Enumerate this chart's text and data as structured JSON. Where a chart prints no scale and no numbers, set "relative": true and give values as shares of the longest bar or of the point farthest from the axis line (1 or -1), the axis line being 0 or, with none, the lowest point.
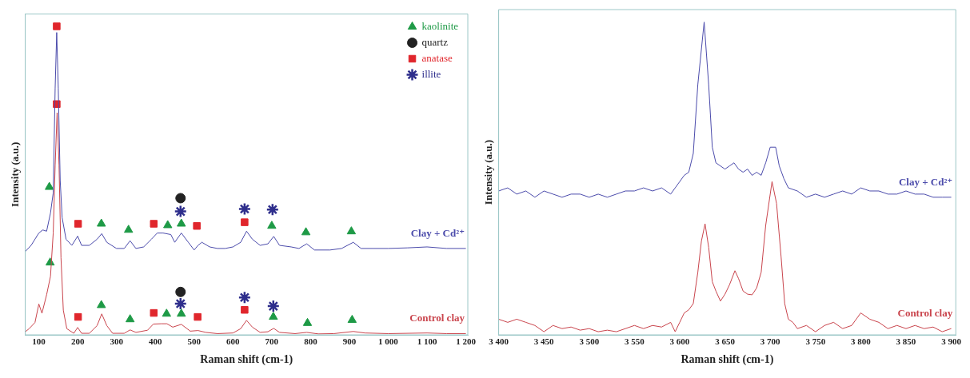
{
  "chart_data": [
    {
      "type": "line",
      "relative": true,
      "xlabel": "Raman shift (cm-1)",
      "ylabel": "Intensity (a.u.)",
      "xlim": [
        65,
        1205
      ],
      "xticks": [
        100,
        200,
        300,
        400,
        500,
        600,
        700,
        800,
        900,
        {
          "value": 1000,
          "label": "1 000"
        },
        {
          "value": 1100,
          "label": "1 100"
        },
        {
          "value": 1200,
          "label": "1 200"
        }
      ],
      "legend": "top right",
      "series": [
        {
          "name": "Clay + Cd²⁺",
          "color": "#4b4bab",
          "x": [
            65,
            80,
            100,
            110,
            120,
            130,
            137,
            142,
            146,
            150,
            155,
            160,
            170,
            185,
            200,
            210,
            230,
            250,
            262,
            275,
            300,
            320,
            335,
            350,
            370,
            390,
            405,
            420,
            440,
            450,
            467,
            485,
            500,
            510,
            520,
            540,
            560,
            580,
            600,
            620,
            635,
            650,
            670,
            690,
            705,
            720,
            750,
            770,
            790,
            810,
            850,
            880,
            910,
            930,
            960,
            1000,
            1050,
            1100,
            1150,
            1200
          ],
          "values": [
            0.27,
            0.29,
            0.33,
            0.34,
            0.336,
            0.395,
            0.46,
            0.8,
            0.98,
            0.8,
            0.5,
            0.38,
            0.31,
            0.29,
            0.32,
            0.29,
            0.29,
            0.31,
            0.328,
            0.3,
            0.28,
            0.28,
            0.305,
            0.28,
            0.285,
            0.31,
            0.33,
            0.33,
            0.325,
            0.3,
            0.33,
            0.3,
            0.275,
            0.29,
            0.3,
            0.285,
            0.28,
            0.28,
            0.285,
            0.3,
            0.336,
            0.31,
            0.29,
            0.295,
            0.319,
            0.29,
            0.285,
            0.28,
            0.295,
            0.275,
            0.275,
            0.28,
            0.3,
            0.28,
            0.28,
            0.28,
            0.282,
            0.285,
            0.28,
            0.28
          ]
        },
        {
          "name": "Control clay",
          "color": "#c9444c",
          "x": [
            65,
            75,
            90,
            100,
            108,
            120,
            130,
            137,
            142,
            147,
            152,
            157,
            163,
            172,
            190,
            200,
            210,
            230,
            250,
            262,
            275,
            290,
            320,
            335,
            350,
            380,
            395,
            415,
            430,
            445,
            467,
            490,
            510,
            530,
            560,
            600,
            620,
            635,
            650,
            670,
            690,
            705,
            720,
            760,
            790,
            820,
            860,
            910,
            940,
            1000,
            1100,
            1150,
            1200
          ],
          "values": [
            0.01,
            0.02,
            0.04,
            0.1,
            0.07,
            0.13,
            0.19,
            0.33,
            0.55,
            0.72,
            0.55,
            0.25,
            0.08,
            0.02,
            0.005,
            0.024,
            0.005,
            0.005,
            0.03,
            0.068,
            0.03,
            0.005,
            0.005,
            0.016,
            0.008,
            0.015,
            0.035,
            0.036,
            0.036,
            0.025,
            0.034,
            0.012,
            0.014,
            0.008,
            0.004,
            0.006,
            0.02,
            0.047,
            0.025,
            0.008,
            0.01,
            0.021,
            0.008,
            0.004,
            0.008,
            0.003,
            0.004,
            0.011,
            0.006,
            0.004,
            0.006,
            0.004,
            0.004
          ]
        },
        {
          "name": "kaolinite",
          "type": "scatter",
          "marker": "triangle",
          "color": "#1e9a46",
          "x": [
            127,
            261,
            331,
            432,
            467,
            700,
            788,
            905,
            129,
            261,
            335,
            429,
            467,
            704,
            792,
            907
          ],
          "values": [
            0.479,
            0.36,
            0.34,
            0.355,
            0.36,
            0.353,
            0.332,
            0.335,
            0.234,
            0.096,
            0.05,
            0.068,
            0.068,
            0.058,
            0.038,
            0.048
          ]
        },
        {
          "name": "quartz",
          "type": "scatter",
          "marker": "circle",
          "color": "#222222",
          "x": [
            465,
            465
          ],
          "values": [
            0.443,
            0.139
          ]
        },
        {
          "name": "anatase",
          "type": "scatter",
          "marker": "square",
          "color": "#e0262c",
          "x": [
            146,
            201,
            396,
            507,
            630,
            146,
            201,
            396,
            509,
            630
          ],
          "values": [
            1.0,
            0.36,
            0.36,
            0.353,
            0.365,
            0.748,
            0.058,
            0.071,
            0.058,
            0.081
          ]
        },
        {
          "name": "illite",
          "type": "scatter",
          "marker": "cross",
          "color": "#2e2e8c",
          "x": [
            465,
            630,
            702,
            465,
            630,
            704
          ],
          "values": [
            0.4,
            0.408,
            0.406,
            0.101,
            0.121,
            0.093
          ]
        }
      ]
    },
    {
      "type": "line",
      "relative": true,
      "xlabel": "Raman shift (cm-1)",
      "ylabel": "Intensity (a.u.)",
      "xlim": [
        3400,
        3905
      ],
      "xticks": [
        {
          "value": 3400,
          "label": "3 400"
        },
        {
          "value": 3450,
          "label": "3 450"
        },
        {
          "value": 3500,
          "label": "3 500"
        },
        {
          "value": 3550,
          "label": "3 550"
        },
        {
          "value": 3600,
          "label": "3 600"
        },
        {
          "value": 3650,
          "label": "3 650"
        },
        {
          "value": 3700,
          "label": "3 700"
        },
        {
          "value": 3750,
          "label": "3 750"
        },
        {
          "value": 3800,
          "label": "3 800"
        },
        {
          "value": 3850,
          "label": "3 850"
        },
        {
          "value": 3900,
          "label": "3 900"
        }
      ],
      "series": [
        {
          "name": "Clay + Cd²⁺",
          "color": "#4b4bab",
          "x": [
            3400,
            3410,
            3420,
            3430,
            3440,
            3450,
            3460,
            3470,
            3480,
            3490,
            3500,
            3510,
            3520,
            3530,
            3540,
            3550,
            3560,
            3570,
            3580,
            3590,
            3595,
            3600,
            3605,
            3610,
            3615,
            3620,
            3627,
            3632,
            3636,
            3640,
            3645,
            3650,
            3655,
            3660,
            3665,
            3670,
            3675,
            3680,
            3685,
            3690,
            3695,
            3700,
            3706,
            3710,
            3715,
            3720,
            3730,
            3740,
            3750,
            3760,
            3770,
            3780,
            3790,
            3800,
            3810,
            3820,
            3830,
            3840,
            3850,
            3860,
            3870,
            3880,
            3890,
            3900
          ],
          "values": [
            0.46,
            0.47,
            0.45,
            0.46,
            0.44,
            0.46,
            0.45,
            0.44,
            0.45,
            0.45,
            0.44,
            0.45,
            0.44,
            0.45,
            0.46,
            0.46,
            0.47,
            0.46,
            0.47,
            0.45,
            0.47,
            0.49,
            0.51,
            0.52,
            0.58,
            0.8,
            1.0,
            0.8,
            0.6,
            0.55,
            0.54,
            0.53,
            0.54,
            0.55,
            0.53,
            0.52,
            0.53,
            0.51,
            0.52,
            0.51,
            0.55,
            0.6,
            0.6,
            0.54,
            0.5,
            0.47,
            0.46,
            0.44,
            0.45,
            0.44,
            0.45,
            0.46,
            0.45,
            0.47,
            0.46,
            0.46,
            0.45,
            0.45,
            0.46,
            0.45,
            0.45,
            0.44,
            0.44,
            0.44
          ]
        },
        {
          "name": "Control clay",
          "color": "#c9444c",
          "x": [
            3400,
            3410,
            3420,
            3430,
            3440,
            3450,
            3460,
            3470,
            3480,
            3490,
            3500,
            3510,
            3520,
            3530,
            3540,
            3550,
            3560,
            3570,
            3580,
            3590,
            3595,
            3600,
            3605,
            3610,
            3615,
            3620,
            3624,
            3628,
            3632,
            3636,
            3640,
            3645,
            3650,
            3655,
            3661,
            3665,
            3670,
            3675,
            3680,
            3685,
            3690,
            3695,
            3702,
            3707,
            3712,
            3716,
            3720,
            3725,
            3730,
            3740,
            3750,
            3760,
            3770,
            3780,
            3790,
            3800,
            3810,
            3820,
            3830,
            3840,
            3850,
            3860,
            3870,
            3880,
            3890,
            3900
          ],
          "values": [
            0.05,
            0.04,
            0.05,
            0.04,
            0.03,
            0.01,
            0.03,
            0.02,
            0.025,
            0.015,
            0.02,
            0.01,
            0.015,
            0.01,
            0.02,
            0.03,
            0.02,
            0.03,
            0.025,
            0.04,
            0.01,
            0.04,
            0.07,
            0.08,
            0.1,
            0.2,
            0.3,
            0.355,
            0.28,
            0.17,
            0.14,
            0.108,
            0.13,
            0.16,
            0.205,
            0.18,
            0.14,
            0.13,
            0.128,
            0.15,
            0.2,
            0.35,
            0.49,
            0.42,
            0.25,
            0.1,
            0.05,
            0.04,
            0.02,
            0.03,
            0.01,
            0.03,
            0.04,
            0.02,
            0.03,
            0.07,
            0.05,
            0.04,
            0.02,
            0.03,
            0.02,
            0.03,
            0.02,
            0.025,
            0.01,
            0.02
          ]
        }
      ]
    }
  ]
}
